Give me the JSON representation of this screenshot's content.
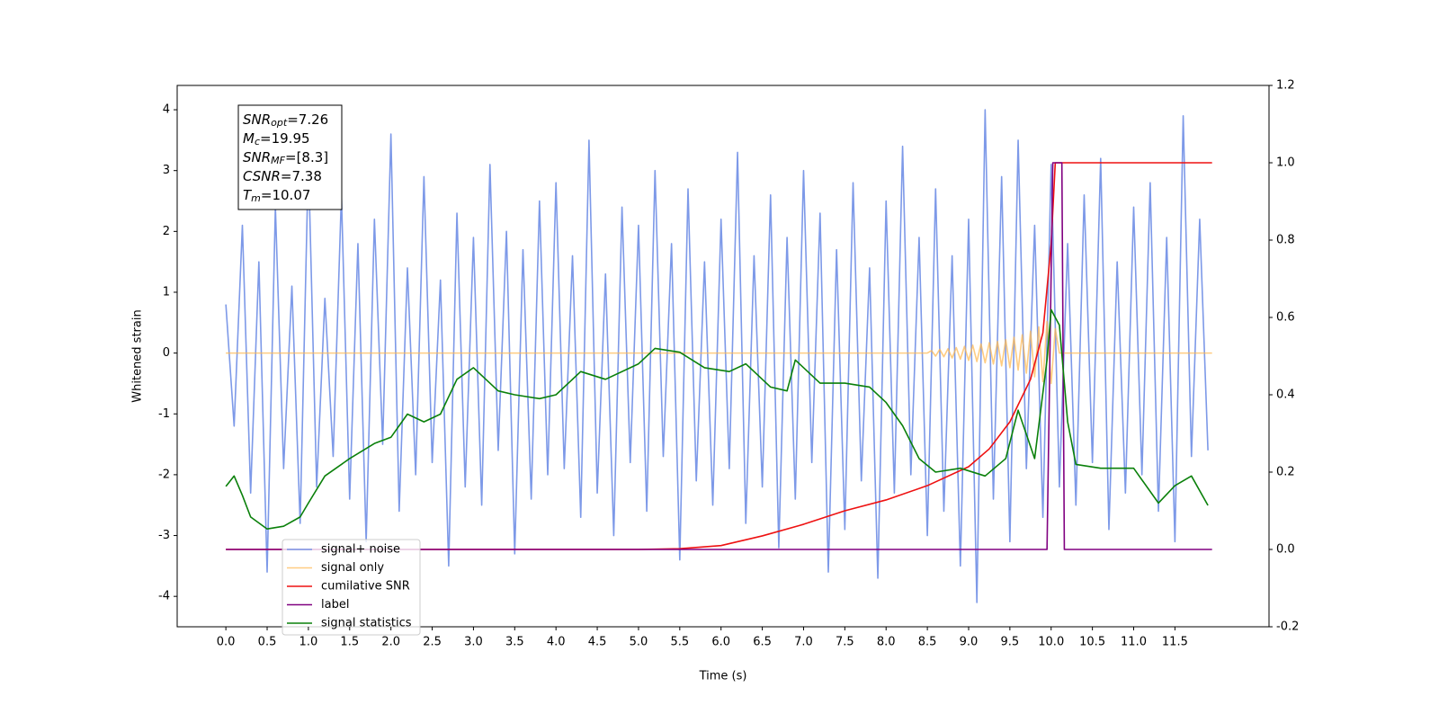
{
  "chart_data": {
    "type": "line",
    "x_label": "Time (s)",
    "y_label": "Whitened strain",
    "xlim": [
      -0.59,
      12.64
    ],
    "ylim": [
      -4.5,
      4.4
    ],
    "y2lim": [
      -0.2,
      1.2
    ],
    "xticks": [
      {
        "value": 0,
        "label": "0.0"
      },
      0.5,
      {
        "value": 1,
        "label": "1.0"
      },
      1.5,
      {
        "value": 2,
        "label": "2.0"
      },
      2.5,
      {
        "value": 3,
        "label": "3.0"
      },
      3.5,
      {
        "value": 4,
        "label": "4.0"
      },
      4.5,
      {
        "value": 5,
        "label": "5.0"
      },
      5.5,
      {
        "value": 6,
        "label": "6.0"
      },
      6.5,
      {
        "value": 7,
        "label": "7.0"
      },
      7.5,
      {
        "value": 8,
        "label": "8.0"
      },
      8.5,
      {
        "value": 9,
        "label": "9.0"
      },
      9.5,
      {
        "value": 10,
        "label": "10.0"
      },
      10.5,
      {
        "value": 11,
        "label": "11.0"
      },
      11.5
    ],
    "yticks": [
      -4,
      -3,
      -2,
      -1,
      0,
      1,
      2,
      3,
      4
    ],
    "y2ticks": [
      -0.2,
      {
        "value": 0,
        "label": "0.0"
      },
      0.2,
      0.4,
      0.6,
      0.8,
      {
        "value": 1,
        "label": "1.0"
      },
      1.2
    ],
    "legend_loc": "lower left",
    "annotation": [
      {
        "main": "SNR",
        "sub": "opt",
        "rest": "=7.26"
      },
      {
        "main": "M",
        "sub": "c",
        "rest": "=19.95"
      },
      {
        "main": "SNR",
        "sub": "MF",
        "rest": "=[8.3]"
      },
      {
        "main": "CSNR",
        "sub": "",
        "rest": "=7.38"
      },
      {
        "main": "T",
        "sub": "m",
        "rest": "=10.07"
      }
    ],
    "series": [
      {
        "name": "signal+ noise",
        "color": "#6f8ee6",
        "opacity": 0.9,
        "x": [
          0,
          0.1,
          0.2,
          0.3,
          0.4,
          0.5,
          0.6,
          0.7,
          0.8,
          0.9,
          1,
          1.1,
          1.2,
          1.3,
          1.4,
          1.5,
          1.6,
          1.7,
          1.8,
          1.9,
          2,
          2.1,
          2.2,
          2.3,
          2.4,
          2.5,
          2.6,
          2.7,
          2.8,
          2.9,
          3,
          3.1,
          3.2,
          3.3,
          3.4,
          3.5,
          3.6,
          3.7,
          3.8,
          3.9,
          4,
          4.1,
          4.2,
          4.3,
          4.4,
          4.5,
          4.6,
          4.7,
          4.8,
          4.9,
          5,
          5.1,
          5.2,
          5.3,
          5.4,
          5.5,
          5.6,
          5.7,
          5.8,
          5.9,
          6,
          6.1,
          6.2,
          6.3,
          6.4,
          6.5,
          6.6,
          6.7,
          6.8,
          6.9,
          7,
          7.1,
          7.2,
          7.3,
          7.4,
          7.5,
          7.6,
          7.7,
          7.8,
          7.9,
          8,
          8.1,
          8.2,
          8.3,
          8.4,
          8.5,
          8.6,
          8.7,
          8.8,
          8.9,
          9,
          9.1,
          9.2,
          9.3,
          9.4,
          9.5,
          9.6,
          9.7,
          9.8,
          9.9,
          10,
          10.1,
          10.2,
          10.3,
          10.4,
          10.5,
          10.6,
          10.7,
          10.8,
          10.9,
          11,
          11.1,
          11.2,
          11.3,
          11.4,
          11.5,
          11.6,
          11.7,
          11.8,
          11.9
        ],
        "values": [
          0.8,
          -1.2,
          2.1,
          -2.3,
          1.5,
          -3.6,
          2.4,
          -1.9,
          1.1,
          -2.8,
          3.2,
          -2.2,
          0.9,
          -1.7,
          2.6,
          -2.4,
          1.8,
          -3.1,
          2.2,
          -1.5,
          3.6,
          -2.6,
          1.4,
          -2.0,
          2.9,
          -1.8,
          1.2,
          -3.5,
          2.3,
          -2.2,
          1.9,
          -2.5,
          3.1,
          -1.6,
          2.0,
          -3.3,
          1.7,
          -2.4,
          2.5,
          -2.0,
          2.8,
          -1.9,
          1.6,
          -2.7,
          3.5,
          -2.3,
          1.3,
          -3.0,
          2.4,
          -1.8,
          2.1,
          -2.6,
          3.0,
          -1.7,
          1.8,
          -3.4,
          2.7,
          -2.1,
          1.5,
          -2.5,
          2.2,
          -1.9,
          3.3,
          -2.8,
          1.6,
          -2.2,
          2.6,
          -3.2,
          1.9,
          -2.4,
          3.0,
          -1.8,
          2.3,
          -3.6,
          1.7,
          -2.9,
          2.8,
          -2.1,
          1.4,
          -3.7,
          2.5,
          -2.3,
          3.4,
          -2.0,
          1.9,
          -3.0,
          2.7,
          -2.6,
          1.6,
          -3.5,
          2.2,
          -4.1,
          4.0,
          -2.4,
          2.9,
          -3.1,
          3.5,
          -1.9,
          2.1,
          -2.7,
          3.1,
          -2.2,
          1.8,
          -2.5,
          2.6,
          -1.8,
          3.2,
          -2.9,
          1.5,
          -2.3,
          2.4,
          -2.0,
          2.8,
          -2.6,
          1.9,
          -3.1,
          3.9,
          -1.7,
          2.2,
          -1.6
        ]
      },
      {
        "name": "signal only",
        "color": "#ffb74d",
        "opacity": 0.7,
        "x": [
          0,
          8.5,
          8.55,
          8.6,
          8.65,
          8.7,
          8.75,
          8.8,
          8.85,
          8.9,
          8.95,
          9,
          9.05,
          9.1,
          9.15,
          9.2,
          9.25,
          9.3,
          9.35,
          9.4,
          9.45,
          9.5,
          9.55,
          9.6,
          9.65,
          9.7,
          9.75,
          9.8,
          9.85,
          9.9,
          9.95,
          10,
          10.05,
          10.1,
          11.95
        ],
        "values": [
          0,
          0,
          0.04,
          -0.05,
          0.06,
          -0.06,
          0.07,
          -0.08,
          0.09,
          -0.1,
          0.11,
          -0.12,
          0.13,
          -0.14,
          0.15,
          -0.16,
          0.17,
          -0.18,
          0.19,
          -0.21,
          0.22,
          -0.24,
          0.26,
          -0.28,
          0.3,
          -0.33,
          0.36,
          -0.39,
          0.43,
          -0.47,
          0.52,
          -0.5,
          0.4,
          0,
          0
        ]
      },
      {
        "name": "cumilative SNR",
        "color": "#ee1111",
        "opacity": 1,
        "axis": "y2",
        "x": [
          0,
          5,
          5.5,
          6,
          6.5,
          7,
          7.5,
          8,
          8.5,
          9,
          9.25,
          9.5,
          9.75,
          9.9,
          10,
          10.05,
          10.1,
          11.95
        ],
        "values": [
          0,
          0,
          0.002,
          0.01,
          0.035,
          0.065,
          0.1,
          0.128,
          0.165,
          0.214,
          0.26,
          0.33,
          0.44,
          0.56,
          0.79,
          1.0,
          1.0,
          1.0
        ]
      },
      {
        "name": "label",
        "color": "#800080",
        "opacity": 1,
        "axis": "y2",
        "x": [
          0,
          9.95,
          10.02,
          10.13,
          10.16,
          11.95
        ],
        "values": [
          0,
          0,
          1,
          1,
          0,
          0
        ]
      },
      {
        "name": "signal statistics",
        "color": "#0a800a",
        "opacity": 1,
        "axis": "y2",
        "x": [
          0,
          0.1,
          0.2,
          0.3,
          0.5,
          0.7,
          0.9,
          1,
          1.2,
          1.5,
          1.8,
          2,
          2.2,
          2.4,
          2.6,
          2.8,
          3,
          3.3,
          3.5,
          3.8,
          4,
          4.3,
          4.6,
          5,
          5.2,
          5.5,
          5.8,
          6.1,
          6.3,
          6.6,
          6.8,
          6.9,
          7.2,
          7.5,
          7.8,
          8,
          8.2,
          8.4,
          8.6,
          8.9,
          9.2,
          9.45,
          9.6,
          9.8,
          9.95,
          10,
          10.1,
          10.2,
          10.3,
          10.6,
          11,
          11.3,
          11.5,
          11.7,
          11.9
        ],
        "values": [
          0.163,
          0.19,
          0.14,
          0.084,
          0.053,
          0.06,
          0.084,
          0.12,
          0.19,
          0.235,
          0.274,
          0.29,
          0.35,
          0.33,
          0.35,
          0.44,
          0.47,
          0.41,
          0.4,
          0.39,
          0.4,
          0.46,
          0.44,
          0.48,
          0.52,
          0.51,
          0.47,
          0.46,
          0.48,
          0.42,
          0.41,
          0.49,
          0.43,
          0.43,
          0.42,
          0.38,
          0.32,
          0.235,
          0.2,
          0.21,
          0.19,
          0.235,
          0.36,
          0.235,
          0.49,
          0.62,
          0.58,
          0.33,
          0.22,
          0.21,
          0.21,
          0.12,
          0.165,
          0.19,
          0.114
        ]
      }
    ]
  }
}
